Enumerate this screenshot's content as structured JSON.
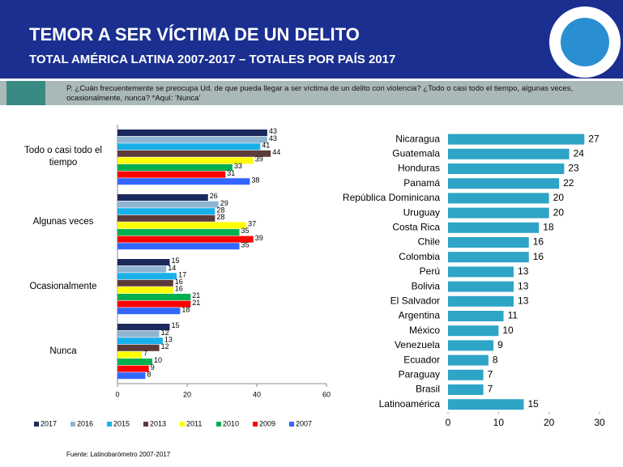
{
  "header": {
    "title": "TEMOR A SER VÍCTIMA DE UN DELITO",
    "subtitle": "TOTAL AMÉRICA LATINA 2007-2017 – TOTALES POR PAÍS 2017",
    "question": "P. ¿Cuán frecuentemente se preocupa Ud. de que pueda llegar a ser víctima de un delito con violencia? ¿Todo o casi todo el tiempo, algunas veces, ocasionalmente, nunca? *Aquí: 'Nunca'"
  },
  "source": "Fuente: Latinobarómetro 2007-2017",
  "chart_data": [
    {
      "type": "grouped-hbar",
      "categories": [
        "Todo o casi todo el tiempo",
        "Algunas veces",
        "Ocasionalmente",
        "Nunca"
      ],
      "series": [
        {
          "name": "2017",
          "color": "#1c2a5e",
          "values": [
            43,
            26,
            15,
            15
          ]
        },
        {
          "name": "2016",
          "color": "#8fb4d2",
          "values": [
            43,
            29,
            14,
            12
          ]
        },
        {
          "name": "2015",
          "color": "#19b0ea",
          "values": [
            41,
            28,
            17,
            13
          ]
        },
        {
          "name": "2013",
          "color": "#5d3b3b",
          "values": [
            44,
            28,
            16,
            12
          ]
        },
        {
          "name": "2011",
          "color": "#ffff00",
          "values": [
            39,
            37,
            16,
            7
          ]
        },
        {
          "name": "2010",
          "color": "#00b050",
          "values": [
            33,
            35,
            21,
            10
          ]
        },
        {
          "name": "2009",
          "color": "#ff0000",
          "values": [
            31,
            39,
            21,
            9
          ]
        },
        {
          "name": "2007",
          "color": "#3366ff",
          "values": [
            38,
            35,
            18,
            8
          ]
        }
      ],
      "xlim": [
        0,
        60
      ],
      "xticks": [
        0,
        20,
        40,
        60
      ],
      "legend": "bottom"
    },
    {
      "type": "hbar",
      "categories": [
        "Nicaragua",
        "Guatemala",
        "Honduras",
        "Panamá",
        "República Dominicana",
        "Uruguay",
        "Costa Rica",
        "Chile",
        "Colombia",
        "Perú",
        "Bolivia",
        "El Salvador",
        "Argentina",
        "México",
        "Venezuela",
        "Ecuador",
        "Paraguay",
        "Brasil",
        "Latinoamérica"
      ],
      "values": [
        27,
        24,
        23,
        22,
        20,
        20,
        18,
        16,
        16,
        13,
        13,
        13,
        11,
        10,
        9,
        8,
        7,
        7,
        15
      ],
      "color": "#2ea4c6",
      "xlim": [
        0,
        30
      ],
      "xticks": [
        0,
        10,
        20,
        30
      ]
    }
  ]
}
